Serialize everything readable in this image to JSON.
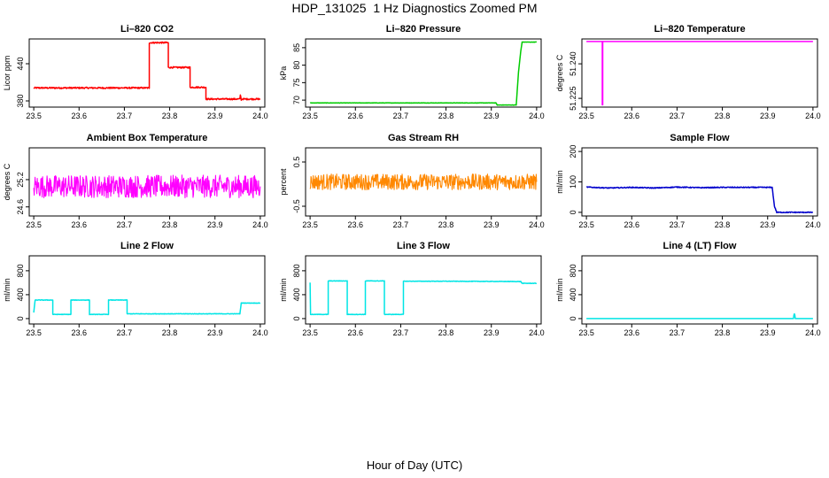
{
  "title": "HDP_131025  1 Hz Diagnostics Zoomed PM",
  "xlabel": "Hour of Day (UTC)",
  "chart_data": [
    {
      "type": "line",
      "title": "Li–820 CO2",
      "ylabel": "Licor ppm",
      "color": "#ff0000",
      "xlim": [
        23.49,
        24.01
      ],
      "ylim": [
        370,
        480
      ],
      "xticks": [
        23.5,
        23.6,
        23.7,
        23.8,
        23.9,
        24.0
      ],
      "xtick_labels": [
        "23.5",
        "23.6",
        "23.7",
        "23.8",
        "23.9",
        "24.0"
      ],
      "yticks": [
        380,
        440
      ],
      "ytick_labels": [
        "380",
        "440"
      ],
      "noise": 1.2,
      "x": [
        23.5,
        23.755,
        23.755,
        23.797,
        23.797,
        23.845,
        23.845,
        23.88,
        23.88,
        23.955,
        23.956,
        23.958,
        23.96,
        24.0
      ],
      "y": [
        401,
        401,
        474,
        474,
        434,
        434,
        402,
        402,
        383,
        383,
        390,
        382,
        383,
        383
      ]
    },
    {
      "type": "line",
      "title": "Li–820 Pressure",
      "ylabel": "kPa",
      "color": "#00cc00",
      "xlim": [
        23.49,
        24.01
      ],
      "ylim": [
        68,
        87.5
      ],
      "xticks": [
        23.5,
        23.6,
        23.7,
        23.8,
        23.9,
        24.0
      ],
      "xtick_labels": [
        "23.5",
        "23.6",
        "23.7",
        "23.8",
        "23.9",
        "24.0"
      ],
      "yticks": [
        70,
        75,
        80,
        85
      ],
      "ytick_labels": [
        "70",
        "75",
        "80",
        "85"
      ],
      "noise": 0.05,
      "x": [
        23.5,
        23.91,
        23.913,
        23.955,
        23.96,
        23.965,
        23.968,
        23.97,
        24.0
      ],
      "y": [
        69.2,
        69.2,
        68.6,
        68.6,
        78,
        84,
        86.6,
        86.6,
        86.6
      ]
    },
    {
      "type": "line",
      "title": "Li–820 Temperature",
      "ylabel": "degrees C",
      "color": "#ff00ff",
      "xlim": [
        23.49,
        24.01
      ],
      "ylim": [
        51.2212,
        51.2508
      ],
      "xticks": [
        23.5,
        23.6,
        23.7,
        23.8,
        23.9,
        24.0
      ],
      "xtick_labels": [
        "23.5",
        "23.6",
        "23.7",
        "23.8",
        "23.9",
        "24.0"
      ],
      "yticks": [
        51.225,
        51.24
      ],
      "ytick_labels": [
        "51.225",
        "51.240"
      ],
      "noise": 0,
      "x": [
        23.5,
        23.535,
        23.535,
        23.536,
        23.536,
        24.0
      ],
      "y": [
        51.2497,
        51.2497,
        51.2222,
        51.2222,
        51.2497,
        51.2497
      ]
    },
    {
      "type": "line",
      "title": "Ambient Box Temperature",
      "ylabel": "degrees C",
      "color": "#ff00ff",
      "xlim": [
        23.49,
        24.01
      ],
      "ylim": [
        24.4,
        25.9
      ],
      "xticks": [
        23.5,
        23.6,
        23.7,
        23.8,
        23.9,
        24.0
      ],
      "xtick_labels": [
        "23.5",
        "23.6",
        "23.7",
        "23.8",
        "23.9",
        "24.0"
      ],
      "yticks": [
        24.6,
        25.2
      ],
      "ytick_labels": [
        "24.6",
        "25.2"
      ],
      "noise": 0.25,
      "x": [
        23.5,
        24.0
      ],
      "y": [
        25.05,
        25.05
      ]
    },
    {
      "type": "line",
      "title": "Gas Stream RH",
      "ylabel": "percent",
      "color": "#ff8800",
      "xlim": [
        23.49,
        24.01
      ],
      "ylim": [
        -0.72,
        0.82
      ],
      "xticks": [
        23.5,
        23.6,
        23.7,
        23.8,
        23.9,
        24.0
      ],
      "xtick_labels": [
        "23.5",
        "23.6",
        "23.7",
        "23.8",
        "23.9",
        "24.0"
      ],
      "yticks": [
        -0.5,
        0.5
      ],
      "ytick_labels": [
        "-0.5",
        "0.5"
      ],
      "noise": 0.18,
      "x": [
        23.5,
        24.0
      ],
      "y": [
        0.05,
        0.05
      ]
    },
    {
      "type": "line",
      "title": "Sample Flow",
      "ylabel": "ml/min",
      "color": "#0000cc",
      "xlim": [
        23.49,
        24.01
      ],
      "ylim": [
        -12,
        212
      ],
      "xticks": [
        23.5,
        23.6,
        23.7,
        23.8,
        23.9,
        24.0
      ],
      "xtick_labels": [
        "23.5",
        "23.6",
        "23.7",
        "23.8",
        "23.9",
        "24.0"
      ],
      "yticks": [
        0,
        100,
        200
      ],
      "ytick_labels": [
        "0",
        "100",
        "200"
      ],
      "noise": 1.5,
      "x": [
        23.5,
        23.55,
        23.6,
        23.65,
        23.7,
        23.75,
        23.8,
        23.85,
        23.91,
        23.915,
        23.92,
        24.0
      ],
      "y": [
        83,
        80,
        82,
        80,
        83,
        81,
        82,
        82,
        82,
        20,
        0,
        0
      ]
    },
    {
      "type": "line",
      "title": "Line 2 Flow",
      "ylabel": "ml/min",
      "color": "#00e5e5",
      "xlim": [
        23.49,
        24.01
      ],
      "ylim": [
        -90,
        1050
      ],
      "xticks": [
        23.5,
        23.6,
        23.7,
        23.8,
        23.9,
        24.0
      ],
      "xtick_labels": [
        "23.5",
        "23.6",
        "23.7",
        "23.8",
        "23.9",
        "24.0"
      ],
      "yticks": [
        0,
        400,
        800
      ],
      "ytick_labels": [
        "0",
        "400",
        "800"
      ],
      "noise": 4,
      "x": [
        23.5,
        23.503,
        23.542,
        23.542,
        23.582,
        23.582,
        23.623,
        23.623,
        23.665,
        23.665,
        23.706,
        23.706,
        23.955,
        23.958,
        24.0
      ],
      "y": [
        100,
        310,
        310,
        70,
        70,
        310,
        310,
        70,
        70,
        310,
        310,
        80,
        80,
        260,
        260
      ]
    },
    {
      "type": "line",
      "title": "Line 3 Flow",
      "ylabel": "ml/min",
      "color": "#00e5e5",
      "xlim": [
        23.49,
        24.01
      ],
      "ylim": [
        -90,
        1050
      ],
      "xticks": [
        23.5,
        23.6,
        23.7,
        23.8,
        23.9,
        24.0
      ],
      "xtick_labels": [
        "23.5",
        "23.6",
        "23.7",
        "23.8",
        "23.9",
        "24.0"
      ],
      "yticks": [
        0,
        400,
        800
      ],
      "ytick_labels": [
        "0",
        "400",
        "800"
      ],
      "noise": 4,
      "x": [
        23.5,
        23.501,
        23.502,
        23.54,
        23.54,
        23.582,
        23.582,
        23.622,
        23.622,
        23.664,
        23.664,
        23.706,
        23.706,
        23.8,
        23.965,
        23.968,
        24.0
      ],
      "y": [
        600,
        70,
        70,
        70,
        630,
        630,
        70,
        70,
        630,
        630,
        70,
        70,
        625,
        625,
        620,
        590,
        590
      ]
    },
    {
      "type": "line",
      "title": "Line 4 (LT) Flow",
      "ylabel": "ml/min",
      "color": "#00e5e5",
      "xlim": [
        23.49,
        24.01
      ],
      "ylim": [
        -90,
        1050
      ],
      "xticks": [
        23.5,
        23.6,
        23.7,
        23.8,
        23.9,
        24.0
      ],
      "xtick_labels": [
        "23.5",
        "23.6",
        "23.7",
        "23.8",
        "23.9",
        "24.0"
      ],
      "yticks": [
        0,
        400,
        800
      ],
      "ytick_labels": [
        "0",
        "400",
        "800"
      ],
      "noise": 0,
      "x": [
        23.5,
        23.957,
        23.958,
        23.959,
        23.96,
        23.961,
        24.0
      ],
      "y": [
        0,
        0,
        60,
        80,
        60,
        0,
        0
      ]
    }
  ]
}
